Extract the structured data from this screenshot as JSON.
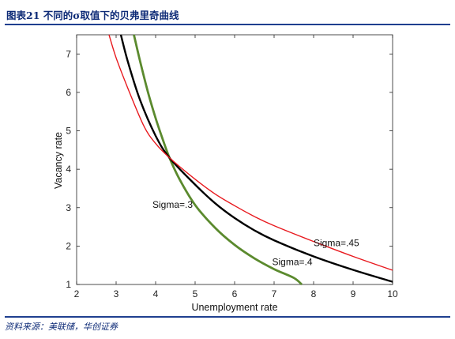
{
  "header": {
    "title": "图表21  不同的σ取值下的贝弗里奇曲线"
  },
  "source": "资料来源：美联储，华创证券",
  "chart_data": {
    "type": "line",
    "title": "",
    "xlabel": "Unemployment rate",
    "ylabel": "Vacancy rate",
    "xlim": [
      2,
      10
    ],
    "ylim": [
      1,
      7.5
    ],
    "xticks": [
      2,
      3,
      4,
      5,
      6,
      7,
      8,
      9,
      10
    ],
    "yticks": [
      1,
      2,
      3,
      4,
      5,
      6,
      7
    ],
    "grid": false,
    "series": [
      {
        "name": "Sigma=.3",
        "color": "#5b8a2e",
        "x": [
          3.45,
          3.6,
          3.8,
          4.0,
          4.2,
          4.35,
          4.6,
          5.0,
          5.5,
          6.0,
          6.5,
          7.0,
          7.5,
          7.7
        ],
        "y": [
          7.5,
          6.84,
          6.03,
          5.33,
          4.72,
          4.3,
          3.75,
          3.07,
          2.48,
          2.03,
          1.68,
          1.4,
          1.17,
          1.0
        ]
      },
      {
        "name": "Sigma=.4",
        "color": "#000000",
        "x": [
          3.12,
          3.3,
          3.6,
          4.0,
          4.35,
          5.0,
          5.5,
          6.0,
          6.5,
          7.0,
          8.0,
          9.0,
          10.0
        ],
        "y": [
          7.5,
          6.79,
          5.82,
          4.87,
          4.3,
          3.6,
          3.12,
          2.73,
          2.41,
          2.15,
          1.73,
          1.38,
          1.07
        ]
      },
      {
        "name": "Sigma=.45",
        "color": "#e8191e",
        "x": [
          2.82,
          3.0,
          3.3,
          3.7,
          4.0,
          4.35,
          5.0,
          5.5,
          6.0,
          6.5,
          7.0,
          8.0,
          9.0,
          10.0
        ],
        "y": [
          7.5,
          6.9,
          6.1,
          5.13,
          4.67,
          4.3,
          3.74,
          3.36,
          3.05,
          2.77,
          2.53,
          2.12,
          1.73,
          1.37
        ]
      }
    ],
    "annotations": [
      {
        "text": "Sigma=.3",
        "x": 3.92,
        "y": 3.0
      },
      {
        "text": "Sigma=.4",
        "x": 6.95,
        "y": 1.5
      },
      {
        "text": "Sigma=.45",
        "x": 8.0,
        "y": 2.0
      }
    ]
  }
}
